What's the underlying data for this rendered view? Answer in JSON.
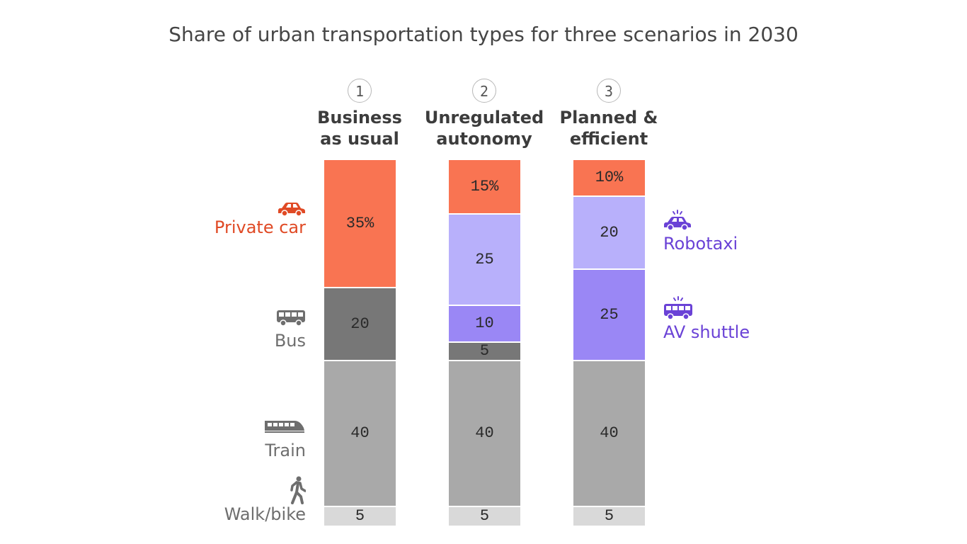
{
  "chart_data": {
    "type": "bar",
    "stacked": true,
    "title": "Share of urban transportation types for three scenarios in 2030",
    "categories": [
      {
        "number": "1",
        "name_lines": [
          "Business",
          "as usual"
        ]
      },
      {
        "number": "2",
        "name_lines": [
          "Unregulated",
          "autonomy"
        ]
      },
      {
        "number": "3",
        "name_lines": [
          "Planned &",
          "efficient"
        ]
      }
    ],
    "ylim": [
      0,
      100
    ],
    "series": [
      {
        "name": "Walk/bike",
        "color": "#d9d9d9",
        "values": [
          5,
          5,
          5
        ],
        "labels": [
          "5",
          "5",
          "5"
        ]
      },
      {
        "name": "Train",
        "color": "#a9a9a9",
        "values": [
          40,
          40,
          40
        ],
        "labels": [
          "40",
          "40",
          "40"
        ]
      },
      {
        "name": "Bus",
        "color": "#777777",
        "values": [
          20,
          5,
          0
        ],
        "labels": [
          "20",
          "5",
          ""
        ]
      },
      {
        "name": "AV shuttle",
        "color": "#9a87f5",
        "values": [
          0,
          10,
          25
        ],
        "labels": [
          "",
          "10",
          "25"
        ]
      },
      {
        "name": "Robotaxi",
        "color": "#b8b0fb",
        "values": [
          0,
          25,
          20
        ],
        "labels": [
          "",
          "25",
          "20"
        ]
      },
      {
        "name": "Private car",
        "color": "#f97452",
        "values": [
          35,
          15,
          10
        ],
        "labels": [
          "35%",
          "15%",
          "10%"
        ]
      }
    ],
    "legend": {
      "left": [
        {
          "label": "Private car",
          "icon": "car-icon",
          "color": "#e04a25"
        },
        {
          "label": "Bus",
          "icon": "bus-icon",
          "color": "#6e6e6e"
        },
        {
          "label": "Train",
          "icon": "train-icon",
          "color": "#6e6e6e"
        },
        {
          "label": "Walk/bike",
          "icon": "walker-icon",
          "color": "#6e6e6e"
        }
      ],
      "right": [
        {
          "label": "Robotaxi",
          "icon": "robotaxi-icon",
          "color": "#6a42d6"
        },
        {
          "label": "AV shuttle",
          "icon": "av-shuttle-icon",
          "color": "#6a42d6"
        }
      ]
    }
  }
}
